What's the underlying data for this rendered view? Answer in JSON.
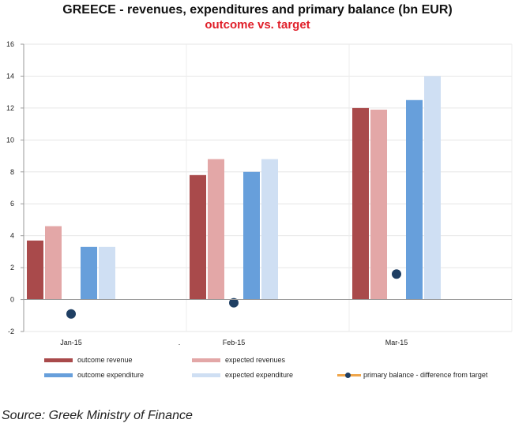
{
  "title": "GREECE - revenues, expenditures and primary balance (bn EUR)",
  "subtitle": "outcome vs. target",
  "source": "Source: Greek Ministry of Finance",
  "colors": {
    "outcome_revenue": "#a94a4b",
    "expected_revenues": "#e3a7a7",
    "outcome_expenditure": "#679fdb",
    "expected_expenditure": "#cfdff3",
    "primary_balance_marker": "#1f3f63",
    "primary_balance_line": "#f0a64a"
  },
  "legend": {
    "outcome_revenue": "outcome revenue",
    "expected_revenues": "expected revenues",
    "outcome_expenditure": "outcome expenditure",
    "expected_expenditure": "expected expenditure",
    "primary_balance": "primary balance - difference from target"
  },
  "chart_data": {
    "type": "bar",
    "title": "GREECE - revenues, expenditures and primary balance (bn EUR)",
    "subtitle": "outcome vs. target",
    "categories": [
      "Jan-15",
      "Feb-15",
      "Mar-15"
    ],
    "stray_tick_label": ".",
    "yticks": [
      16,
      14,
      12,
      10,
      8,
      6,
      4,
      2,
      0,
      -2
    ],
    "ylim": [
      -2,
      16
    ],
    "grid": true,
    "legend_position": "bottom",
    "series": [
      {
        "name": "outcome revenue",
        "type": "bar",
        "values": [
          3.7,
          7.8,
          12.0
        ]
      },
      {
        "name": "expected revenues",
        "type": "bar",
        "values": [
          4.6,
          8.8,
          11.9
        ]
      },
      {
        "name": "outcome expenditure",
        "type": "bar",
        "values": [
          3.3,
          8.0,
          12.5
        ]
      },
      {
        "name": "expected expenditure",
        "type": "bar",
        "values": [
          3.3,
          8.8,
          14.0
        ]
      },
      {
        "name": "primary balance - difference from target",
        "type": "marker",
        "values": [
          -0.9,
          -0.2,
          1.6
        ]
      }
    ]
  }
}
